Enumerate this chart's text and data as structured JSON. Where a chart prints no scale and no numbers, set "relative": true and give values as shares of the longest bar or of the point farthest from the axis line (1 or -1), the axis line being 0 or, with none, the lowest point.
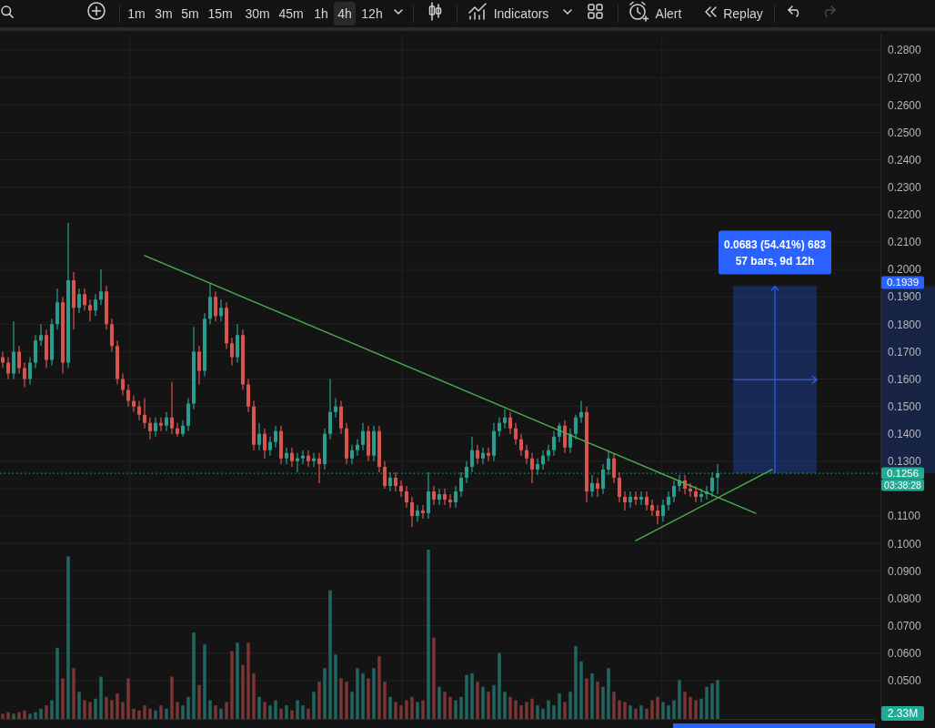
{
  "chart_data": [
    {
      "type": "candlestick",
      "categories": [
        null,
        null,
        null,
        null,
        null,
        null,
        null,
        null,
        null,
        null,
        null,
        null,
        null,
        null,
        null,
        null,
        null,
        null,
        null,
        null,
        null,
        null,
        null,
        null,
        null,
        null,
        null,
        null,
        null,
        null,
        null,
        null,
        null,
        null,
        null,
        null,
        null,
        null,
        null,
        null,
        null,
        null,
        null,
        null,
        null,
        null,
        null,
        null,
        null,
        null,
        null,
        null,
        null,
        null,
        null,
        null,
        null,
        null,
        null,
        null,
        null,
        null,
        null,
        null,
        null,
        null,
        null,
        null,
        null,
        null,
        null,
        null,
        null,
        null,
        null,
        null,
        null,
        null,
        null,
        null,
        null,
        null,
        null,
        null,
        null,
        null,
        null,
        null,
        null,
        null,
        null,
        null,
        null,
        null,
        null,
        null,
        null,
        null,
        null,
        null,
        null,
        null,
        null,
        null,
        null,
        null,
        null,
        null,
        null,
        null,
        null,
        null,
        null,
        null,
        null,
        null,
        null,
        null,
        null,
        null,
        null,
        null,
        null,
        null,
        null,
        null,
        null,
        null,
        null,
        null,
        null,
        null,
        null,
        null,
        null,
        null,
        null,
        null,
        null,
        null,
        null,
        null,
        null,
        null,
        null,
        null,
        null,
        null,
        null,
        null,
        null,
        null,
        null,
        null,
        null,
        null,
        null,
        null,
        null,
        null,
        null
      ],
      "ohlc": [
        [
          0.168,
          0.17,
          0.164,
          0.166
        ],
        [
          0.166,
          0.168,
          0.16,
          0.162
        ],
        [
          0.162,
          0.181,
          0.16,
          0.17
        ],
        [
          0.17,
          0.172,
          0.162,
          0.164
        ],
        [
          0.164,
          0.166,
          0.157,
          0.16
        ],
        [
          0.16,
          0.168,
          0.158,
          0.166
        ],
        [
          0.166,
          0.176,
          0.164,
          0.174
        ],
        [
          0.174,
          0.18,
          0.172,
          0.176
        ],
        [
          0.176,
          0.178,
          0.164,
          0.167
        ],
        [
          0.167,
          0.182,
          0.165,
          0.18
        ],
        [
          0.18,
          0.193,
          0.178,
          0.188
        ],
        [
          0.188,
          0.19,
          0.162,
          0.166
        ],
        [
          0.166,
          0.217,
          0.164,
          0.196
        ],
        [
          0.196,
          0.199,
          0.178,
          0.186
        ],
        [
          0.186,
          0.193,
          0.184,
          0.191
        ],
        [
          0.191,
          0.193,
          0.185,
          0.187
        ],
        [
          0.187,
          0.189,
          0.181,
          0.185
        ],
        [
          0.185,
          0.191,
          0.183,
          0.189
        ],
        [
          0.189,
          0.2,
          0.187,
          0.192
        ],
        [
          0.192,
          0.194,
          0.178,
          0.18
        ],
        [
          0.18,
          0.182,
          0.17,
          0.172
        ],
        [
          0.172,
          0.174,
          0.158,
          0.16
        ],
        [
          0.16,
          0.162,
          0.154,
          0.156
        ],
        [
          0.156,
          0.158,
          0.15,
          0.152
        ],
        [
          0.152,
          0.154,
          0.148,
          0.15
        ],
        [
          0.15,
          0.152,
          0.145,
          0.147
        ],
        [
          0.147,
          0.153,
          0.142,
          0.144
        ],
        [
          0.144,
          0.146,
          0.138,
          0.141
        ],
        [
          0.141,
          0.146,
          0.139,
          0.144
        ],
        [
          0.144,
          0.146,
          0.141,
          0.143
        ],
        [
          0.143,
          0.148,
          0.141,
          0.146
        ],
        [
          0.146,
          0.159,
          0.14,
          0.142
        ],
        [
          0.142,
          0.144,
          0.139,
          0.14
        ],
        [
          0.14,
          0.145,
          0.139,
          0.143
        ],
        [
          0.143,
          0.153,
          0.141,
          0.151
        ],
        [
          0.151,
          0.179,
          0.149,
          0.17
        ],
        [
          0.17,
          0.172,
          0.158,
          0.163
        ],
        [
          0.163,
          0.184,
          0.161,
          0.182
        ],
        [
          0.182,
          0.195,
          0.18,
          0.19
        ],
        [
          0.19,
          0.192,
          0.181,
          0.183
        ],
        [
          0.183,
          0.189,
          0.181,
          0.186
        ],
        [
          0.186,
          0.188,
          0.171,
          0.173
        ],
        [
          0.173,
          0.175,
          0.165,
          0.168
        ],
        [
          0.168,
          0.18,
          0.166,
          0.176
        ],
        [
          0.176,
          0.178,
          0.156,
          0.158
        ],
        [
          0.158,
          0.16,
          0.148,
          0.15
        ],
        [
          0.15,
          0.152,
          0.134,
          0.136
        ],
        [
          0.136,
          0.144,
          0.134,
          0.14
        ],
        [
          0.14,
          0.142,
          0.131,
          0.134
        ],
        [
          0.134,
          0.139,
          0.132,
          0.137
        ],
        [
          0.137,
          0.143,
          0.135,
          0.141
        ],
        [
          0.141,
          0.143,
          0.129,
          0.131
        ],
        [
          0.131,
          0.135,
          0.129,
          0.133
        ],
        [
          0.133,
          0.135,
          0.128,
          0.13
        ],
        [
          0.13,
          0.133,
          0.126,
          0.131
        ],
        [
          0.131,
          0.134,
          0.129,
          0.132
        ],
        [
          0.132,
          0.134,
          0.128,
          0.13
        ],
        [
          0.13,
          0.133,
          0.128,
          0.131
        ],
        [
          0.131,
          0.133,
          0.122,
          0.129
        ],
        [
          0.129,
          0.142,
          0.127,
          0.14
        ],
        [
          0.14,
          0.16,
          0.138,
          0.148
        ],
        [
          0.148,
          0.153,
          0.146,
          0.15
        ],
        [
          0.15,
          0.152,
          0.14,
          0.142
        ],
        [
          0.142,
          0.144,
          0.129,
          0.131
        ],
        [
          0.131,
          0.136,
          0.129,
          0.134
        ],
        [
          0.134,
          0.138,
          0.132,
          0.136
        ],
        [
          0.136,
          0.144,
          0.134,
          0.141
        ],
        [
          0.141,
          0.143,
          0.13,
          0.132
        ],
        [
          0.132,
          0.143,
          0.13,
          0.141
        ],
        [
          0.141,
          0.143,
          0.126,
          0.128
        ],
        [
          0.128,
          0.13,
          0.12,
          0.121
        ],
        [
          0.121,
          0.126,
          0.119,
          0.124
        ],
        [
          0.124,
          0.126,
          0.119,
          0.121
        ],
        [
          0.121,
          0.123,
          0.117,
          0.119
        ],
        [
          0.119,
          0.121,
          0.113,
          0.115
        ],
        [
          0.115,
          0.117,
          0.106,
          0.11
        ],
        [
          0.11,
          0.114,
          0.108,
          0.112
        ],
        [
          0.112,
          0.114,
          0.109,
          0.111
        ],
        [
          0.111,
          0.126,
          0.109,
          0.119
        ],
        [
          0.119,
          0.121,
          0.114,
          0.116
        ],
        [
          0.116,
          0.12,
          0.114,
          0.118
        ],
        [
          0.118,
          0.12,
          0.114,
          0.116
        ],
        [
          0.116,
          0.118,
          0.113,
          0.115
        ],
        [
          0.115,
          0.121,
          0.113,
          0.119
        ],
        [
          0.119,
          0.126,
          0.117,
          0.124
        ],
        [
          0.124,
          0.13,
          0.122,
          0.128
        ],
        [
          0.128,
          0.139,
          0.126,
          0.134
        ],
        [
          0.134,
          0.136,
          0.129,
          0.131
        ],
        [
          0.131,
          0.135,
          0.129,
          0.133
        ],
        [
          0.133,
          0.135,
          0.13,
          0.132
        ],
        [
          0.132,
          0.144,
          0.13,
          0.141
        ],
        [
          0.141,
          0.146,
          0.139,
          0.144
        ],
        [
          0.144,
          0.149,
          0.142,
          0.146
        ],
        [
          0.146,
          0.148,
          0.14,
          0.142
        ],
        [
          0.142,
          0.144,
          0.136,
          0.138
        ],
        [
          0.138,
          0.14,
          0.132,
          0.134
        ],
        [
          0.134,
          0.136,
          0.129,
          0.131
        ],
        [
          0.131,
          0.133,
          0.122,
          0.127
        ],
        [
          0.127,
          0.131,
          0.125,
          0.129
        ],
        [
          0.129,
          0.134,
          0.127,
          0.132
        ],
        [
          0.132,
          0.136,
          0.13,
          0.134
        ],
        [
          0.134,
          0.141,
          0.132,
          0.139
        ],
        [
          0.139,
          0.144,
          0.137,
          0.143
        ],
        [
          0.143,
          0.145,
          0.133,
          0.135
        ],
        [
          0.135,
          0.142,
          0.133,
          0.14
        ],
        [
          0.14,
          0.147,
          0.138,
          0.146
        ],
        [
          0.146,
          0.152,
          0.144,
          0.148
        ],
        [
          0.148,
          0.15,
          0.115,
          0.119
        ],
        [
          0.119,
          0.125,
          0.117,
          0.122
        ],
        [
          0.122,
          0.124,
          0.117,
          0.12
        ],
        [
          0.12,
          0.129,
          0.118,
          0.127
        ],
        [
          0.127,
          0.134,
          0.125,
          0.131
        ],
        [
          0.131,
          0.133,
          0.122,
          0.124
        ],
        [
          0.124,
          0.126,
          0.115,
          0.117
        ],
        [
          0.117,
          0.119,
          0.112,
          0.115
        ],
        [
          0.115,
          0.119,
          0.113,
          0.117
        ],
        [
          0.117,
          0.119,
          0.114,
          0.116
        ],
        [
          0.116,
          0.119,
          0.114,
          0.117
        ],
        [
          0.117,
          0.119,
          0.112,
          0.114
        ],
        [
          0.114,
          0.116,
          0.11,
          0.112
        ],
        [
          0.112,
          0.114,
          0.107,
          0.11
        ],
        [
          0.11,
          0.116,
          0.108,
          0.114
        ],
        [
          0.114,
          0.119,
          0.112,
          0.117
        ],
        [
          0.117,
          0.123,
          0.115,
          0.121
        ],
        [
          0.121,
          0.125,
          0.119,
          0.123
        ],
        [
          0.123,
          0.125,
          0.118,
          0.12
        ],
        [
          0.12,
          0.122,
          0.117,
          0.119
        ],
        [
          0.119,
          0.121,
          0.115,
          0.117
        ],
        [
          0.117,
          0.12,
          0.115,
          0.118
        ],
        [
          0.118,
          0.121,
          0.116,
          0.119
        ],
        [
          0.119,
          0.126,
          0.117,
          0.124
        ],
        [
          0.124,
          0.129,
          0.118,
          0.1256
        ],
        null,
        null,
        null,
        null,
        null,
        null,
        null,
        null,
        null,
        null,
        null,
        null,
        null,
        null,
        null,
        null,
        null,
        null,
        null,
        null,
        null,
        null,
        null,
        null,
        null,
        null,
        null,
        null,
        null
      ],
      "colors": [
        "#d9534f",
        "#d9534f",
        "#2a9d8f",
        "#d9534f",
        "#d9534f",
        "#2a9d8f",
        "#2a9d8f",
        "#2a9d8f",
        "#d9534f",
        "#2a9d8f",
        "#2a9d8f",
        "#d9534f",
        "#2a9d8f",
        "#d9534f",
        "#2a9d8f",
        "#d9534f",
        "#d9534f",
        "#2a9d8f",
        "#2a9d8f",
        "#d9534f",
        "#d9534f",
        "#d9534f",
        "#d9534f",
        "#d9534f",
        "#d9534f",
        "#d9534f",
        "#d9534f",
        "#d9534f",
        "#2a9d8f",
        "#d9534f",
        "#2a9d8f",
        "#d9534f",
        "#d9534f",
        "#2a9d8f",
        "#2a9d8f",
        "#2a9d8f",
        "#d9534f",
        "#2a9d8f",
        "#2a9d8f",
        "#d9534f",
        "#2a9d8f",
        "#d9534f",
        "#d9534f",
        "#2a9d8f",
        "#d9534f",
        "#d9534f",
        "#d9534f",
        "#2a9d8f",
        "#d9534f",
        "#2a9d8f",
        "#2a9d8f",
        "#d9534f",
        "#2a9d8f",
        "#d9534f",
        "#2a9d8f",
        "#2a9d8f",
        "#d9534f",
        "#2a9d8f",
        "#d9534f",
        "#2a9d8f",
        "#2a9d8f",
        "#2a9d8f",
        "#d9534f",
        "#d9534f",
        "#2a9d8f",
        "#2a9d8f",
        "#2a9d8f",
        "#d9534f",
        "#2a9d8f",
        "#d9534f",
        "#d9534f",
        "#2a9d8f",
        "#d9534f",
        "#d9534f",
        "#d9534f",
        "#d9534f",
        "#2a9d8f",
        "#d9534f",
        "#2a9d8f",
        "#d9534f",
        "#2a9d8f",
        "#d9534f",
        "#d9534f",
        "#2a9d8f",
        "#2a9d8f",
        "#2a9d8f",
        "#2a9d8f",
        "#d9534f",
        "#2a9d8f",
        "#d9534f",
        "#2a9d8f",
        "#2a9d8f",
        "#2a9d8f",
        "#d9534f",
        "#d9534f",
        "#d9534f",
        "#d9534f",
        "#d9534f",
        "#2a9d8f",
        "#2a9d8f",
        "#2a9d8f",
        "#2a9d8f",
        "#2a9d8f",
        "#d9534f",
        "#2a9d8f",
        "#2a9d8f",
        "#2a9d8f",
        "#d9534f",
        "#2a9d8f",
        "#d9534f",
        "#2a9d8f",
        "#2a9d8f",
        "#d9534f",
        "#d9534f",
        "#d9534f",
        "#2a9d8f",
        "#d9534f",
        "#2a9d8f",
        "#d9534f",
        "#d9534f",
        "#d9534f",
        "#2a9d8f",
        "#2a9d8f",
        "#2a9d8f",
        "#2a9d8f",
        "#d9534f",
        "#d9534f",
        "#d9534f",
        "#2a9d8f",
        "#2a9d8f",
        "#2a9d8f",
        "#2a9d8f",
        null,
        null,
        null,
        null,
        null,
        null,
        null,
        null,
        null,
        null,
        null,
        null,
        null,
        null,
        null,
        null,
        null,
        null,
        null,
        null,
        null,
        null,
        null,
        null,
        null,
        null,
        null,
        null,
        null
      ],
      "series": [
        {
          "type": "line",
          "color": "#4caf50",
          "values": [
            null,
            null,
            null,
            null,
            null,
            null,
            null,
            null,
            null,
            null,
            null,
            null,
            null,
            null,
            null,
            null,
            null,
            null,
            null,
            null,
            null,
            null,
            null,
            null,
            null,
            null,
            0.205,
            null,
            null,
            null,
            null,
            null,
            null,
            null,
            null,
            null,
            null,
            null,
            null,
            null,
            null,
            null,
            null,
            null,
            null,
            null,
            null,
            null,
            null,
            null,
            null,
            null,
            null,
            null,
            null,
            null,
            null,
            null,
            null,
            null,
            null,
            null,
            null,
            null,
            null,
            null,
            null,
            null,
            null,
            null,
            null,
            null,
            null,
            null,
            null,
            null,
            null,
            null,
            null,
            null,
            null,
            null,
            null,
            null,
            null,
            null,
            null,
            null,
            null,
            null,
            null,
            null,
            null,
            null,
            null,
            null,
            null,
            null,
            null,
            null,
            null,
            null,
            null,
            null,
            null,
            null,
            null,
            null,
            null,
            null,
            null,
            null,
            null,
            null,
            null,
            null,
            null,
            null,
            null,
            null,
            null,
            null,
            null,
            null,
            null,
            null,
            null,
            null,
            null,
            null,
            null,
            null,
            null,
            null,
            null,
            null,
            null,
            null,
            0.111,
            null,
            null,
            null,
            null,
            null,
            null,
            null,
            null,
            null,
            null,
            null,
            null,
            null,
            null,
            null,
            null,
            null,
            null,
            null,
            null,
            null,
            null
          ]
        },
        {
          "type": "line",
          "color": "#4caf50",
          "values": [
            null,
            null,
            null,
            null,
            null,
            null,
            null,
            null,
            null,
            null,
            null,
            null,
            null,
            null,
            null,
            null,
            null,
            null,
            null,
            null,
            null,
            null,
            null,
            null,
            null,
            null,
            null,
            null,
            null,
            null,
            null,
            null,
            null,
            null,
            null,
            null,
            null,
            null,
            null,
            null,
            null,
            null,
            null,
            null,
            null,
            null,
            null,
            null,
            null,
            null,
            null,
            null,
            null,
            null,
            null,
            null,
            null,
            null,
            null,
            null,
            null,
            null,
            null,
            null,
            null,
            null,
            null,
            null,
            null,
            null,
            null,
            null,
            null,
            null,
            null,
            null,
            null,
            null,
            null,
            null,
            null,
            null,
            null,
            null,
            null,
            null,
            null,
            null,
            null,
            null,
            null,
            null,
            null,
            null,
            null,
            null,
            null,
            null,
            null,
            null,
            null,
            null,
            null,
            null,
            null,
            null,
            null,
            null,
            null,
            null,
            null,
            null,
            null,
            null,
            null,
            null,
            0.101,
            null,
            null,
            null,
            null,
            null,
            null,
            null,
            null,
            null,
            null,
            null,
            null,
            null,
            null,
            null,
            null,
            null,
            null,
            null,
            null,
            null,
            null,
            null,
            null,
            0.127,
            null,
            null,
            null,
            null,
            null,
            null,
            null,
            null,
            null,
            null,
            null,
            null,
            null,
            null,
            null,
            null,
            null,
            null,
            null
          ]
        }
      ],
      "ylim": [
        0.036,
        0.286
      ],
      "yticks": [
        {
          "value": 0.05,
          "label": "0.0500"
        },
        {
          "value": 0.06,
          "label": "0.0600"
        },
        {
          "value": 0.07,
          "label": "0.0700"
        },
        {
          "value": 0.08,
          "label": "0.0800"
        },
        {
          "value": 0.09,
          "label": "0.0900"
        },
        {
          "value": 0.1,
          "label": "0.1000"
        },
        {
          "value": 0.11,
          "label": "0.1100"
        },
        {
          "value": 0.12,
          "label": null
        },
        {
          "value": 0.13,
          "label": "0.1300"
        },
        {
          "value": 0.14,
          "label": "0.1400"
        },
        {
          "value": 0.15,
          "label": "0.1500"
        },
        {
          "value": 0.16,
          "label": "0.1600"
        },
        {
          "value": 0.17,
          "label": "0.1700"
        },
        {
          "value": 0.18,
          "label": "0.1800"
        },
        {
          "value": 0.19,
          "label": "0.1900"
        },
        {
          "value": 0.2,
          "label": "0.2000"
        },
        {
          "value": 0.21,
          "label": "0.2100"
        },
        {
          "value": 0.22,
          "label": "0.2200"
        },
        {
          "value": 0.23,
          "label": "0.2300"
        },
        {
          "value": 0.24,
          "label": "0.2400"
        },
        {
          "value": 0.25,
          "label": "0.2500"
        },
        {
          "value": 0.26,
          "label": "0.2600"
        },
        {
          "value": 0.27,
          "label": "0.2700"
        },
        {
          "value": 0.28,
          "label": "0.2800"
        }
      ],
      "grid": true,
      "ref_lines": [
        {
          "axis": "y",
          "value": 0.1256,
          "label": "0.1256",
          "color": "#22ab94",
          "line_style": "dotted"
        }
      ],
      "bands": [
        {
          "axis": "y",
          "from": 0.1256,
          "to": 0.1939,
          "label": "0.0683 (54.41%) 683\n57 bars, 9d 12h",
          "color": "#2962ff"
        }
      ],
      "annotations": [
        "1m",
        "3m",
        "5m",
        "15m",
        "30m",
        "45m",
        "1h",
        "4h",
        "12h",
        "Indicators",
        "Alert",
        "Replay",
        "0.1939",
        "03:38:28"
      ]
    },
    {
      "type": "bar",
      "relative": true,
      "categories": [
        null,
        null,
        null,
        null,
        null,
        null,
        null,
        null,
        null,
        null,
        null,
        null,
        null,
        null,
        null,
        null,
        null,
        null,
        null,
        null,
        null,
        null,
        null,
        null,
        null,
        null,
        null,
        null,
        null,
        null,
        null,
        null,
        null,
        null,
        null,
        null,
        null,
        null,
        null,
        null,
        null,
        null,
        null,
        null,
        null,
        null,
        null,
        null,
        null,
        null,
        null,
        null,
        null,
        null,
        null,
        null,
        null,
        null,
        null,
        null,
        null,
        null,
        null,
        null,
        null,
        null,
        null,
        null,
        null,
        null,
        null,
        null,
        null,
        null,
        null,
        null,
        null,
        null,
        null,
        null,
        null,
        null,
        null,
        null,
        null,
        null,
        null,
        null,
        null,
        null,
        null,
        null,
        null,
        null,
        null,
        null,
        null,
        null,
        null,
        null,
        null,
        null,
        null,
        null,
        null,
        null,
        null,
        null,
        null,
        null,
        null,
        null,
        null,
        null,
        null,
        null,
        null,
        null,
        null,
        null,
        null,
        null,
        null,
        null,
        null,
        null,
        null,
        null,
        null,
        null,
        null,
        null,
        null,
        null,
        null,
        null,
        null,
        null,
        null,
        null,
        null,
        null,
        null,
        null,
        null,
        null,
        null,
        null,
        null,
        null,
        null,
        null,
        null,
        null,
        null,
        null,
        null,
        null,
        null,
        null,
        null
      ],
      "values": [
        0.03,
        0.04,
        0.03,
        0.04,
        0.05,
        0.03,
        0.04,
        0.06,
        0.08,
        0.11,
        0.42,
        0.24,
        0.96,
        0.3,
        0.16,
        0.11,
        0.1,
        0.12,
        0.25,
        0.13,
        0.11,
        0.15,
        0.1,
        0.24,
        0.06,
        0.05,
        0.08,
        0.06,
        0.05,
        0.08,
        0.06,
        0.25,
        0.1,
        0.08,
        0.13,
        0.51,
        0.2,
        0.44,
        0.11,
        0.08,
        0.06,
        0.1,
        0.4,
        0.45,
        0.32,
        0.45,
        0.27,
        0.13,
        0.1,
        0.08,
        0.11,
        0.06,
        0.08,
        0.05,
        0.11,
        0.08,
        0.06,
        0.16,
        0.22,
        0.3,
        0.76,
        0.38,
        0.24,
        0.22,
        0.16,
        0.3,
        0.27,
        0.24,
        0.3,
        0.37,
        0.22,
        0.13,
        0.1,
        0.08,
        0.11,
        0.13,
        0.1,
        0.11,
        1,
        0.48,
        0.19,
        0.16,
        0.13,
        0.11,
        0.13,
        0.26,
        0.27,
        0.22,
        0.19,
        0.16,
        0.2,
        0.39,
        0.16,
        0.13,
        0.11,
        0.08,
        0.1,
        0.12,
        0.08,
        0.06,
        0.11,
        0.08,
        0.15,
        0.1,
        0.16,
        0.43,
        0.34,
        0.24,
        0.27,
        0.22,
        0.19,
        0.3,
        0.16,
        0.11,
        0.1,
        0.08,
        0.06,
        0.08,
        0.06,
        0.11,
        0.13,
        0.1,
        0.08,
        0.11,
        0.23,
        0.16,
        0.13,
        0.11,
        0.12,
        0.19,
        0.21,
        0.23,
        null,
        null,
        null,
        null,
        null,
        null,
        null,
        null,
        null,
        null,
        null,
        null,
        null,
        null,
        null,
        null,
        null,
        null,
        null,
        null,
        null,
        null,
        null,
        null,
        null,
        null,
        null,
        null,
        null
      ],
      "colors": [
        "#7a3535",
        "#7a3535",
        "#1f6560",
        "#7a3535",
        "#7a3535",
        "#1f6560",
        "#1f6560",
        "#1f6560",
        "#7a3535",
        "#1f6560",
        "#1f6560",
        "#7a3535",
        "#1f6560",
        "#7a3535",
        "#1f6560",
        "#7a3535",
        "#7a3535",
        "#1f6560",
        "#1f6560",
        "#7a3535",
        "#7a3535",
        "#7a3535",
        "#7a3535",
        "#7a3535",
        "#7a3535",
        "#7a3535",
        "#7a3535",
        "#7a3535",
        "#1f6560",
        "#7a3535",
        "#1f6560",
        "#7a3535",
        "#7a3535",
        "#1f6560",
        "#1f6560",
        "#1f6560",
        "#7a3535",
        "#1f6560",
        "#1f6560",
        "#7a3535",
        "#1f6560",
        "#7a3535",
        "#7a3535",
        "#1f6560",
        "#7a3535",
        "#7a3535",
        "#7a3535",
        "#1f6560",
        "#7a3535",
        "#1f6560",
        "#1f6560",
        "#7a3535",
        "#1f6560",
        "#7a3535",
        "#1f6560",
        "#1f6560",
        "#7a3535",
        "#1f6560",
        "#7a3535",
        "#1f6560",
        "#1f6560",
        "#1f6560",
        "#7a3535",
        "#7a3535",
        "#1f6560",
        "#1f6560",
        "#1f6560",
        "#7a3535",
        "#1f6560",
        "#7a3535",
        "#7a3535",
        "#1f6560",
        "#7a3535",
        "#7a3535",
        "#7a3535",
        "#7a3535",
        "#1f6560",
        "#7a3535",
        "#1f6560",
        "#7a3535",
        "#1f6560",
        "#7a3535",
        "#7a3535",
        "#1f6560",
        "#1f6560",
        "#1f6560",
        "#1f6560",
        "#7a3535",
        "#1f6560",
        "#7a3535",
        "#1f6560",
        "#1f6560",
        "#1f6560",
        "#7a3535",
        "#7a3535",
        "#7a3535",
        "#7a3535",
        "#7a3535",
        "#1f6560",
        "#1f6560",
        "#1f6560",
        "#1f6560",
        "#1f6560",
        "#7a3535",
        "#1f6560",
        "#1f6560",
        "#1f6560",
        "#7a3535",
        "#1f6560",
        "#7a3535",
        "#1f6560",
        "#1f6560",
        "#7a3535",
        "#7a3535",
        "#7a3535",
        "#1f6560",
        "#7a3535",
        "#1f6560",
        "#7a3535",
        "#7a3535",
        "#7a3535",
        "#1f6560",
        "#1f6560",
        "#1f6560",
        "#1f6560",
        "#7a3535",
        "#7a3535",
        "#7a3535",
        "#1f6560",
        "#1f6560",
        "#1f6560",
        "#1f6560",
        null,
        null,
        null,
        null,
        null,
        null,
        null,
        null,
        null,
        null,
        null,
        null,
        null,
        null,
        null,
        null,
        null,
        null,
        null,
        null,
        null,
        null,
        null,
        null,
        null,
        null,
        null,
        null,
        null
      ],
      "annotations": [
        "2.33M"
      ]
    }
  ]
}
